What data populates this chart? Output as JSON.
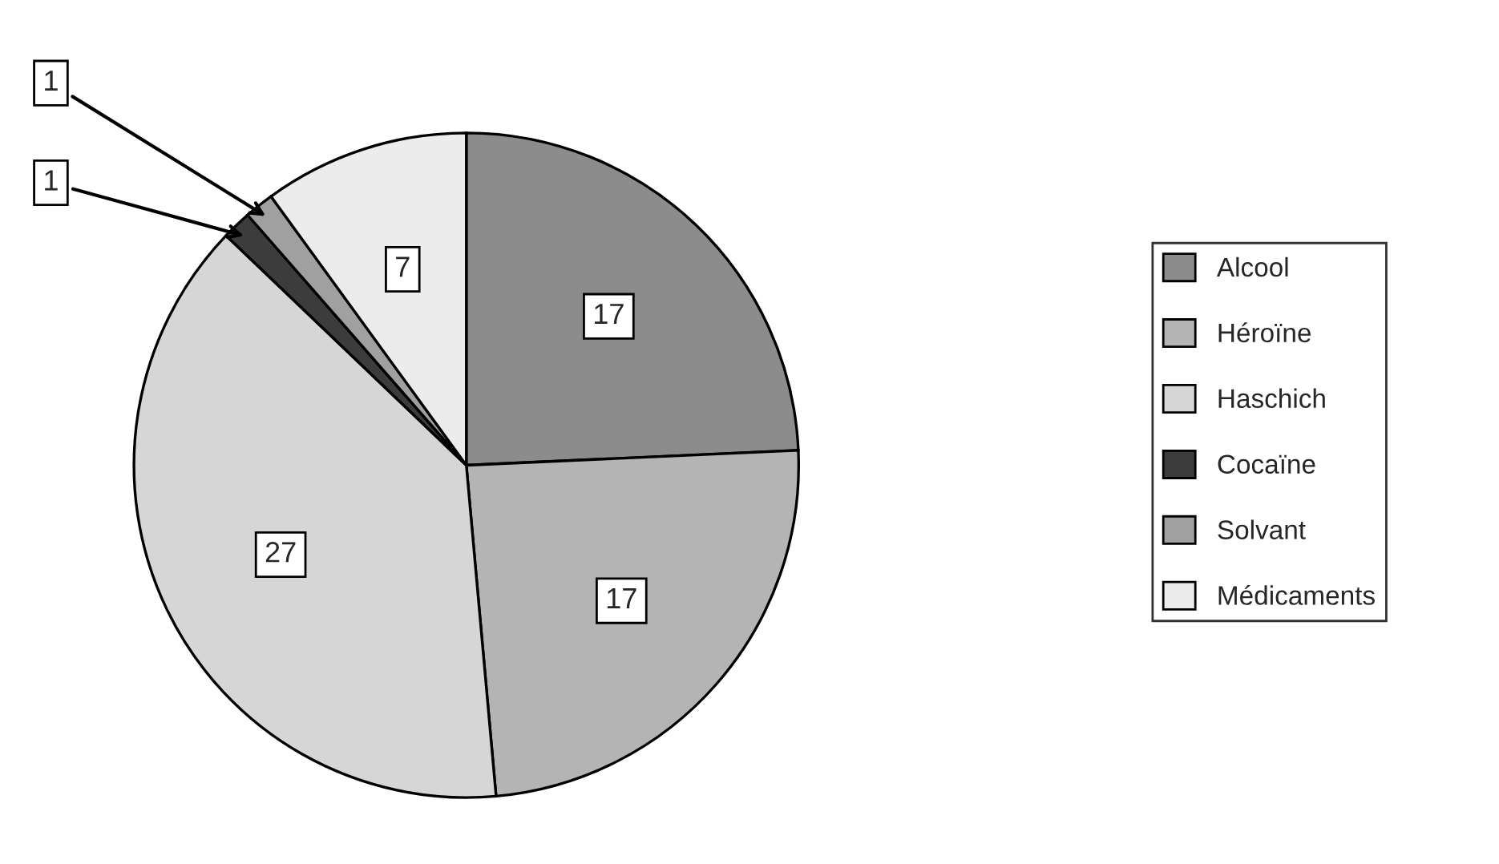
{
  "chart_data": {
    "type": "pie",
    "categories": [
      "Alcool",
      "Héroïne",
      "Haschich",
      "Cocaïne",
      "Solvant",
      "Médicaments"
    ],
    "values": [
      17,
      17,
      27,
      1,
      1,
      7
    ],
    "colors": [
      "#8c8c8c",
      "#b4b4b4",
      "#d6d6d6",
      "#3c3c3c",
      "#a0a0a0",
      "#ececec"
    ],
    "data_labels": true,
    "legend": "right"
  }
}
